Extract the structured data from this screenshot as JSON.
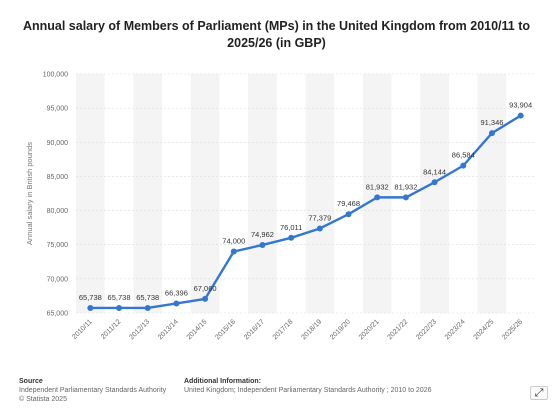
{
  "chart_data": {
    "type": "line",
    "title": "Annual salary of Members of Parliament (MPs) in the United Kingdom from 2010/11 to 2025/26 (in GBP)",
    "ylabel": "Annual salary in British pounds",
    "xlabel": "",
    "categories": [
      "2010/11",
      "2011/12",
      "2012/13",
      "2013/14",
      "2014/15",
      "2015/16",
      "2016/17",
      "2017/18",
      "2018/19",
      "2019/20",
      "2020/21",
      "2021/22",
      "2022/23",
      "2023/24",
      "2024/25",
      "2025/26"
    ],
    "values": [
      65738,
      65738,
      65738,
      66396,
      67060,
      74000,
      74962,
      76011,
      77379,
      79468,
      81932,
      81932,
      84144,
      86584,
      91346,
      93904
    ],
    "data_labels": [
      "65,738",
      "65,738",
      "65,738",
      "66,396",
      "67,060",
      "74,000",
      "74,962",
      "76,011",
      "77,379",
      "79,468",
      "81,932",
      "81,932",
      "84,144",
      "86,584",
      "91,346",
      "93,904"
    ],
    "ylim": [
      65000,
      100000
    ],
    "yticks": [
      65000,
      70000,
      75000,
      80000,
      85000,
      90000,
      95000,
      100000
    ],
    "ytick_labels": [
      "65,000",
      "70,000",
      "75,000",
      "80,000",
      "85,000",
      "90,000",
      "95,000",
      "100,000"
    ],
    "grid": true,
    "legend": "none",
    "line_color": "#3477d1"
  },
  "footer": {
    "source_heading": "Source",
    "source_line1": "Independent Parliamentary Standards Authority",
    "source_line2": "© Statista 2025",
    "info_heading": "Additional Information:",
    "info_line1": "United Kingdom; Independent Parliamentary Standards Authority ; 2010 to 2026"
  },
  "icons": {
    "corner": "expand-icon"
  }
}
